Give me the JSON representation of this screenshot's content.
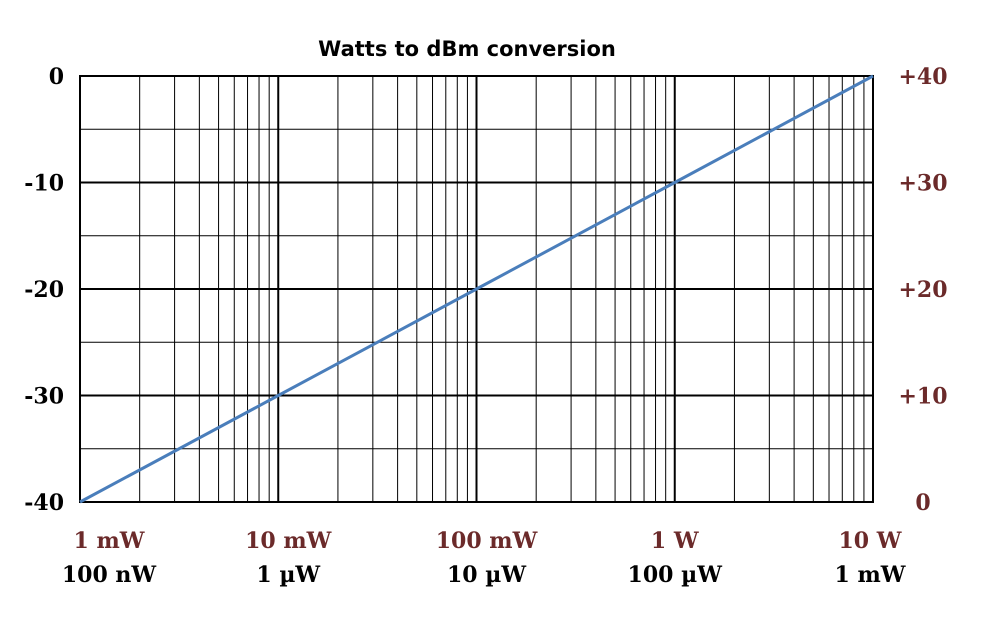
{
  "chart_data": {
    "type": "line",
    "title": "Watts to dBm conversion",
    "xlabel": "",
    "ylabel": "",
    "x_scale": "log",
    "grid": true,
    "legend": "none",
    "colors": {
      "line": "#4a7ebb",
      "grid": "#000000",
      "right_axis_text": "#6b2a2a",
      "left_axis_text": "#000000"
    },
    "axes": {
      "left_y": {
        "range": [
          -40,
          0
        ],
        "tick_labels": [
          "0",
          "-10",
          "-20",
          "-30",
          "-40"
        ]
      },
      "right_y": {
        "range": [
          0,
          40
        ],
        "tick_labels": [
          "+40",
          "+30",
          "+20",
          "+10",
          "0"
        ]
      },
      "bottom_x_top_row": {
        "tick_labels": [
          "1 mW",
          "10 mW",
          "100 mW",
          "1 W",
          "10 W"
        ]
      },
      "bottom_x_bottom_row": {
        "tick_labels": [
          "100 nW",
          "1 µW",
          "10 µW",
          "100 µW",
          "1 mW"
        ]
      }
    },
    "series": [
      {
        "x_decades": [
          0,
          1,
          2,
          3,
          4
        ],
        "values": [
          -40,
          -30,
          -20,
          -10,
          0
        ]
      }
    ]
  }
}
